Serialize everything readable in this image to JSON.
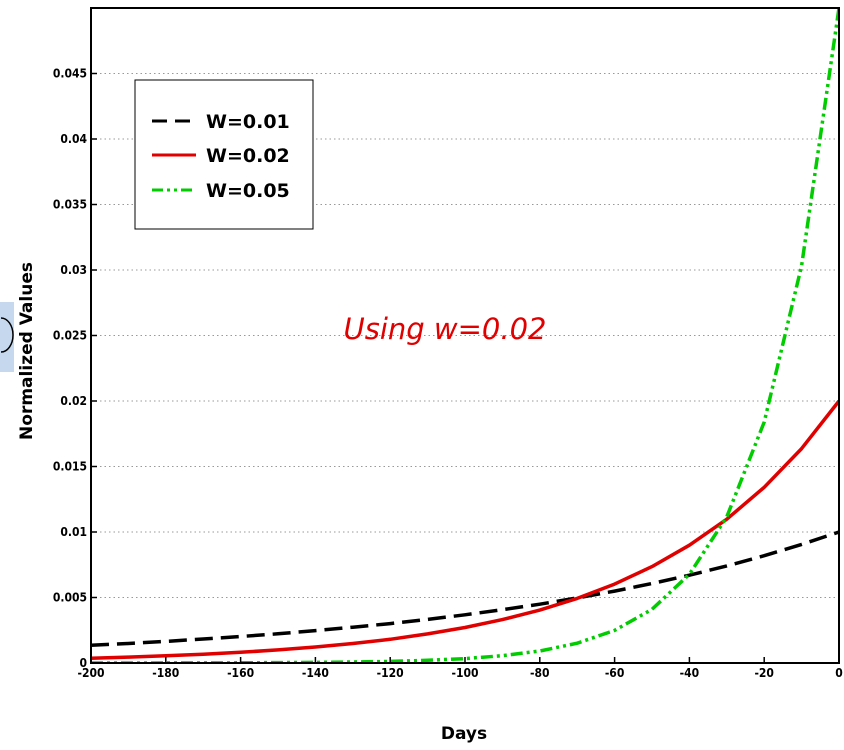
{
  "chart_data": {
    "type": "line",
    "title": "",
    "xlabel": "Days",
    "ylabel": "Normalized Values",
    "xlim": [
      -200,
      0
    ],
    "ylim": [
      0,
      0.05
    ],
    "grid": true,
    "legend_position": "top-left",
    "x_ticks": [
      -200,
      -180,
      -160,
      -140,
      -120,
      -100,
      -80,
      -60,
      -40,
      -20,
      0
    ],
    "x_tick_labels": [
      "-200",
      "-180",
      "-160",
      "-140",
      "-120",
      "-100",
      "-80",
      "-60",
      "-40",
      "-20",
      "0"
    ],
    "y_ticks": [
      0,
      0.005,
      0.01,
      0.015,
      0.02,
      0.025,
      0.03,
      0.035,
      0.04,
      0.045
    ],
    "y_tick_labels": [
      "0",
      "0.005",
      "0.01",
      "0.015",
      "0.02",
      "0.025",
      "0.03",
      "0.035",
      "0.04",
      "0.045"
    ],
    "x": [
      -200,
      -190,
      -180,
      -170,
      -160,
      -150,
      -140,
      -130,
      -120,
      -110,
      -100,
      -90,
      -80,
      -70,
      -60,
      -50,
      -40,
      -30,
      -20,
      -10,
      0
    ],
    "series": [
      {
        "name": "W=0.01",
        "color": "#000000",
        "style": "dashed",
        "values": [
          0.00135,
          0.00149,
          0.00165,
          0.00183,
          0.00202,
          0.00223,
          0.00247,
          0.00273,
          0.00301,
          0.00333,
          0.00368,
          0.00407,
          0.00449,
          0.00497,
          0.00549,
          0.00607,
          0.0067,
          0.00741,
          0.00819,
          0.00905,
          0.01
        ]
      },
      {
        "name": "W=0.02",
        "color": "#e00000",
        "style": "solid",
        "values": [
          0.00037,
          0.00045,
          0.00055,
          0.00067,
          0.00082,
          0.001,
          0.00122,
          0.00149,
          0.00181,
          0.00222,
          0.00271,
          0.00331,
          0.00404,
          0.00493,
          0.00602,
          0.00736,
          0.00899,
          0.01098,
          0.01341,
          0.01637,
          0.02
        ]
      },
      {
        "name": "W=0.05",
        "color": "#00cc00",
        "style": "dash-dot-dot",
        "values": [
          2.3e-06,
          3.8e-06,
          6.2e-06,
          1.02e-05,
          1.68e-05,
          2.77e-05,
          4.56e-05,
          7.52e-05,
          0.000124,
          0.000204,
          0.000337,
          0.000555,
          0.000916,
          0.00151,
          0.00249,
          0.0041,
          0.00677,
          0.01116,
          0.01839,
          0.03033,
          0.05
        ]
      }
    ],
    "annotations": [
      {
        "text": "Using w=0.02",
        "color": "#e00000"
      }
    ]
  }
}
